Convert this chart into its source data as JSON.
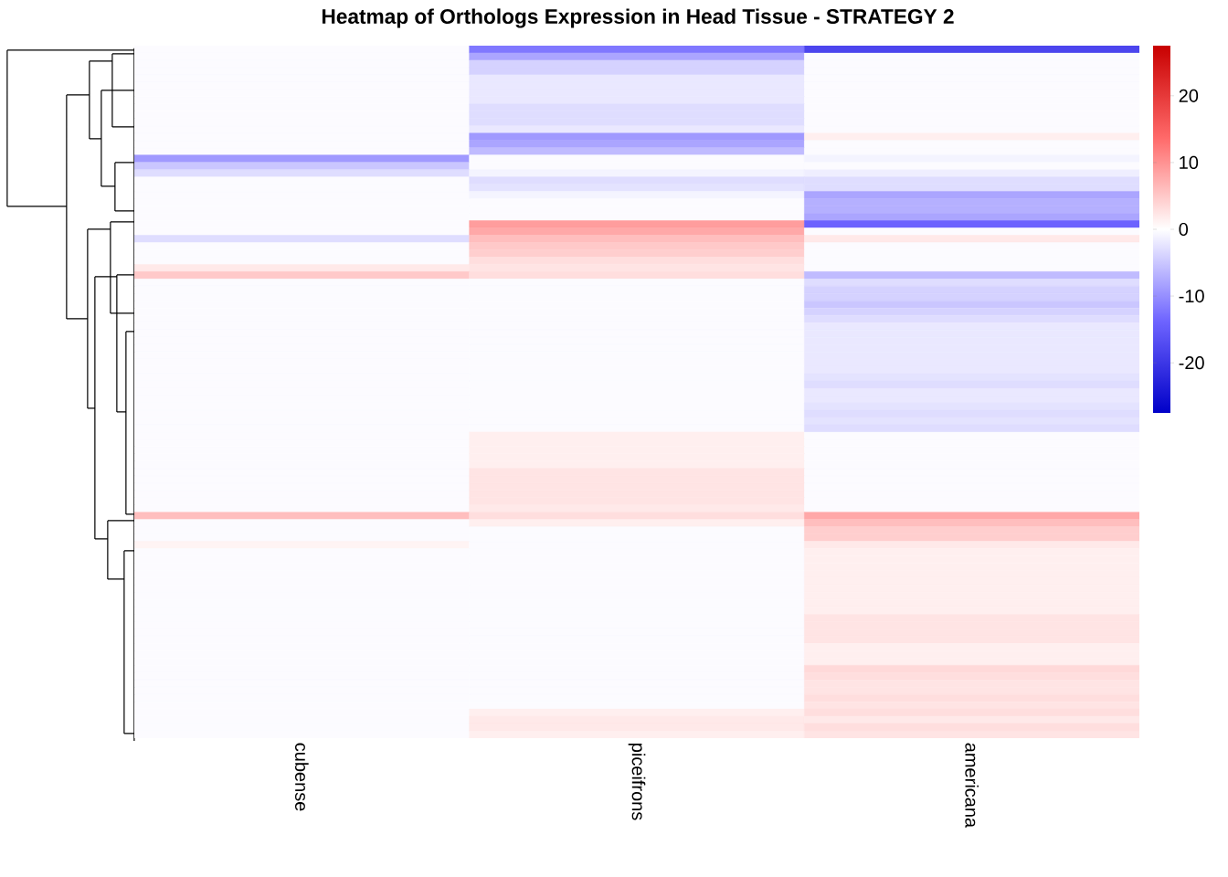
{
  "chart_data": {
    "type": "heatmap",
    "title": "Heatmap of Orthologs Expression in Head Tissue - STRATEGY 2",
    "categories": [
      "cubense",
      "piceifrons",
      "americana"
    ],
    "y_categories": [
      null,
      null,
      null,
      null,
      null,
      null,
      null,
      null,
      null,
      null,
      null,
      null,
      null,
      null,
      null,
      null,
      null,
      null,
      null,
      null,
      null,
      null,
      null,
      null,
      null,
      null,
      null,
      null,
      null,
      null,
      null,
      null,
      null,
      null,
      null,
      null,
      null,
      null,
      null,
      null,
      null,
      null,
      null,
      null,
      null,
      null,
      null,
      null,
      null,
      null,
      null,
      null,
      null,
      null,
      null,
      null,
      null,
      null,
      null,
      null,
      null,
      null,
      null,
      null,
      null,
      null,
      null,
      null,
      null,
      null,
      null,
      null,
      null,
      null,
      null,
      null,
      null,
      null,
      null,
      null,
      null,
      null,
      null,
      null,
      null,
      null,
      null,
      null,
      null,
      null,
      null,
      null,
      null,
      null,
      null
    ],
    "cells": [
      [
        -0.3,
        -12,
        -18
      ],
      [
        -0.3,
        -8,
        -0.3
      ],
      [
        -0.3,
        -4,
        -0.3
      ],
      [
        -0.3,
        -4,
        -0.3
      ],
      [
        -0.3,
        -2,
        -0.3
      ],
      [
        -0.3,
        -2,
        -0.3
      ],
      [
        -0.3,
        -2,
        -0.3
      ],
      [
        -0.3,
        -2,
        -0.3
      ],
      [
        -0.3,
        -3,
        -0.3
      ],
      [
        -0.3,
        -3,
        -0.3
      ],
      [
        -0.3,
        -3,
        -0.3
      ],
      [
        -0.3,
        -2,
        -0.3
      ],
      [
        -0.3,
        -9,
        1.5
      ],
      [
        -0.3,
        -8,
        -0.3
      ],
      [
        -0.3,
        -6,
        -0.3
      ],
      [
        -9,
        -0.3,
        -1
      ],
      [
        -5,
        -0.3,
        -0.3
      ],
      [
        -3,
        -1,
        -1.5
      ],
      [
        -0.3,
        -3,
        -3
      ],
      [
        -0.3,
        -2.5,
        -3
      ],
      [
        -0.3,
        -1,
        -8
      ],
      [
        -0.3,
        -0.3,
        -7
      ],
      [
        -0.3,
        -0.3,
        -7
      ],
      [
        -0.3,
        -0.3,
        -8
      ],
      [
        -0.3,
        9,
        -14
      ],
      [
        -0.3,
        8,
        -0.3
      ],
      [
        -3,
        6,
        2
      ],
      [
        -0.3,
        5,
        -0.3
      ],
      [
        -0.3,
        4.5,
        -0.3
      ],
      [
        -0.3,
        3,
        -0.3
      ],
      [
        2,
        2.5,
        -0.3
      ],
      [
        5,
        3,
        -6
      ],
      [
        -0.3,
        -0.3,
        -3
      ],
      [
        -0.3,
        -0.3,
        -4
      ],
      [
        -0.3,
        -0.3,
        -4
      ],
      [
        -0.3,
        -0.3,
        -5
      ],
      [
        -0.3,
        -0.3,
        -4
      ],
      [
        -0.3,
        -0.3,
        -3
      ],
      [
        -0.3,
        -0.3,
        -2
      ],
      [
        -0.3,
        -0.3,
        -2
      ],
      [
        -0.3,
        -0.3,
        -2
      ],
      [
        -0.3,
        -0.3,
        -2
      ],
      [
        -0.3,
        -0.3,
        -2
      ],
      [
        -0.3,
        -0.3,
        -2
      ],
      [
        -0.3,
        -0.3,
        -2
      ],
      [
        -0.3,
        -0.3,
        -2.5
      ],
      [
        -0.3,
        -0.3,
        -3
      ],
      [
        -0.3,
        -0.3,
        -2
      ],
      [
        -0.3,
        -0.3,
        -2
      ],
      [
        -0.3,
        -0.3,
        -2.5
      ],
      [
        -0.3,
        -0.3,
        -3
      ],
      [
        -0.3,
        -0.3,
        -2.5
      ],
      [
        -0.3,
        -0.3,
        -3
      ],
      [
        -0.3,
        1.5,
        -0.3
      ],
      [
        -0.3,
        1.5,
        -0.3
      ],
      [
        -0.3,
        1.5,
        -0.3
      ],
      [
        -0.3,
        1.5,
        -0.3
      ],
      [
        -0.3,
        1.5,
        -0.3
      ],
      [
        -0.3,
        2.5,
        -0.3
      ],
      [
        -0.3,
        2.5,
        -0.3
      ],
      [
        -0.3,
        2.5,
        -0.3
      ],
      [
        -0.3,
        2.5,
        -0.3
      ],
      [
        -0.3,
        2.5,
        -0.3
      ],
      [
        -0.3,
        2,
        -0.3
      ],
      [
        6,
        3,
        8
      ],
      [
        -0.3,
        1.5,
        6
      ],
      [
        -0.3,
        -0.3,
        4.5
      ],
      [
        -0.3,
        -0.3,
        4.5
      ],
      [
        1,
        -0.3,
        2
      ],
      [
        -0.3,
        -0.3,
        1.5
      ],
      [
        -0.3,
        -0.3,
        1.5
      ],
      [
        -0.3,
        -0.3,
        1.5
      ],
      [
        -0.3,
        -0.3,
        1.5
      ],
      [
        -0.3,
        -0.3,
        1.5
      ],
      [
        -0.3,
        -0.3,
        1.5
      ],
      [
        -0.3,
        -0.3,
        1.5
      ],
      [
        -0.3,
        -0.3,
        1.5
      ],
      [
        -0.3,
        -0.3,
        1.5
      ],
      [
        -0.3,
        -0.3,
        2.5
      ],
      [
        -0.3,
        -0.3,
        2.5
      ],
      [
        -0.3,
        -0.3,
        2.5
      ],
      [
        -0.3,
        -0.3,
        2.5
      ],
      [
        -0.3,
        -0.3,
        1.5
      ],
      [
        -0.3,
        -0.3,
        1.5
      ],
      [
        -0.3,
        -0.3,
        1.5
      ],
      [
        -0.3,
        -0.3,
        3.5
      ],
      [
        -0.3,
        -0.3,
        3
      ],
      [
        -0.3,
        -0.3,
        2.5
      ],
      [
        -0.3,
        -0.3,
        2.5
      ],
      [
        -0.3,
        -0.3,
        3
      ],
      [
        -0.3,
        -0.3,
        2.5
      ],
      [
        -0.3,
        1.5,
        3
      ],
      [
        -0.3,
        2,
        2
      ],
      [
        -0.3,
        2,
        3
      ],
      [
        -0.3,
        1.5,
        2.5
      ]
    ],
    "clim": [
      -27.5,
      27.5
    ],
    "cticks": [
      -20,
      -10,
      0,
      10,
      20
    ]
  }
}
